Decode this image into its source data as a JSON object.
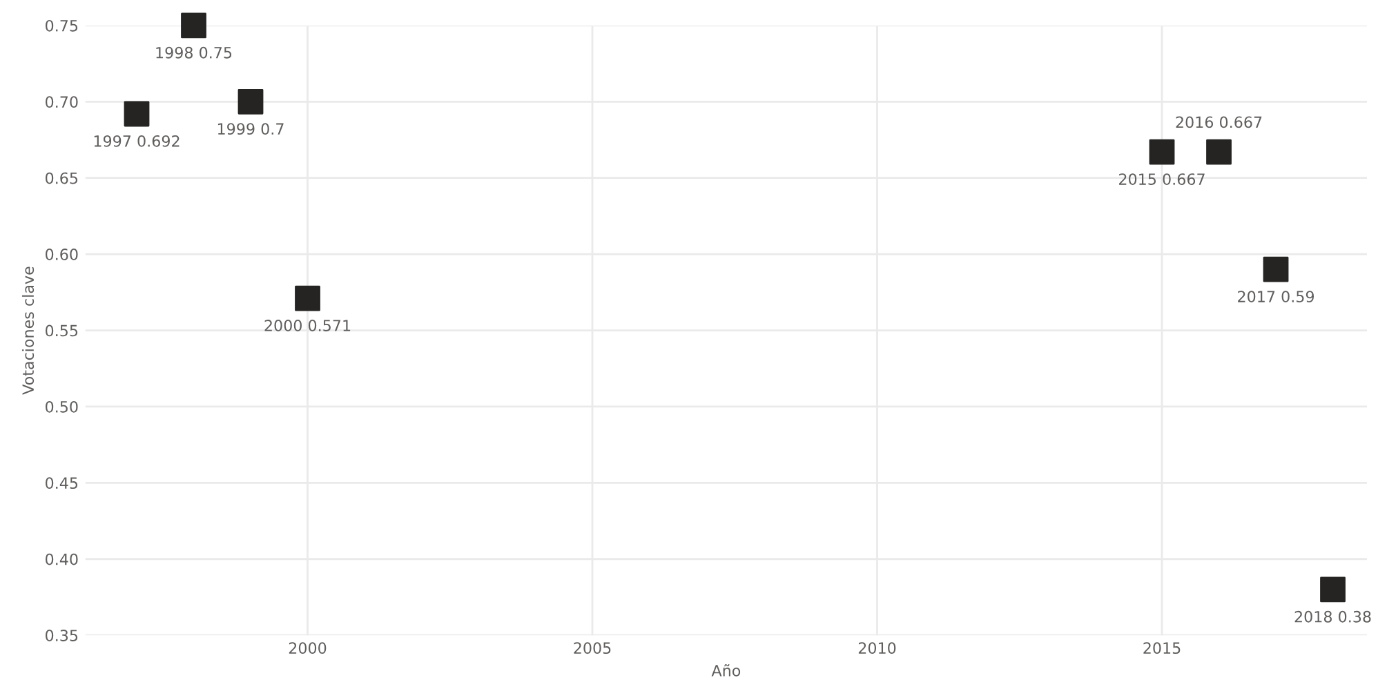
{
  "chart_data": {
    "type": "scatter",
    "xlabel": "Año",
    "ylabel": "Votaciones clave",
    "x": [
      1997,
      1998,
      1999,
      2000,
      2015,
      2016,
      2017,
      2018
    ],
    "values": [
      0.692,
      0.75,
      0.7,
      0.571,
      0.667,
      0.667,
      0.59,
      0.38
    ],
    "value_labels": [
      "1997 0.692",
      "1998 0.75",
      "1999 0.7",
      "2000 0.571",
      "2015 0.667",
      "2016 0.667",
      "2017 0.59",
      "2018 0.38"
    ],
    "color": "#252423",
    "marker": "square",
    "xlim": [
      1996.1,
      2018.6
    ],
    "xticks": [
      2000,
      2005,
      2010,
      2015
    ],
    "ylim": [
      0.35,
      0.75
    ],
    "yticks": [
      {
        "value": 0.35,
        "label": "0.35"
      },
      {
        "value": 0.4,
        "label": "0.40"
      },
      {
        "value": 0.45,
        "label": "0.45"
      },
      {
        "value": 0.5,
        "label": "0.50"
      },
      {
        "value": 0.55,
        "label": "0.55"
      },
      {
        "value": 0.6,
        "label": "0.60"
      },
      {
        "value": 0.65,
        "label": "0.65"
      },
      {
        "value": 0.7,
        "label": "0.70"
      },
      {
        "value": 0.75,
        "label": "0.75"
      }
    ],
    "grid": true
  }
}
